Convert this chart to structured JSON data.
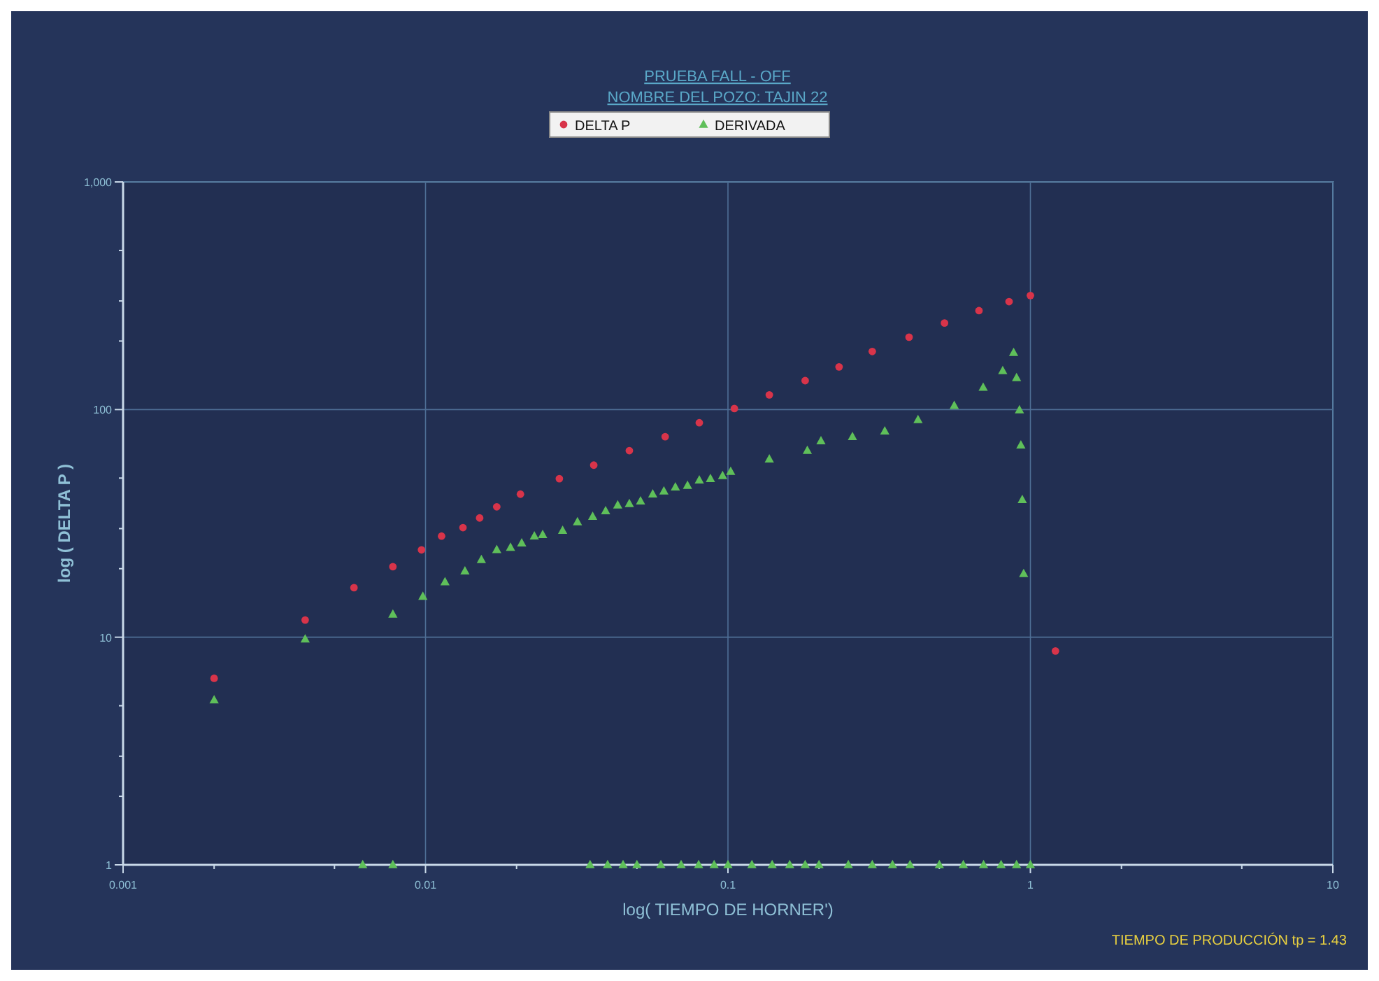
{
  "chart_data": {
    "type": "scatter",
    "title": "PRUEBA  FALL - OFF",
    "subtitle": "NOMBRE DEL POZO: TAJIN 22",
    "xlabel": "log( TIEMPO DE HORNER')",
    "ylabel": "log ( DELTA  P )",
    "log": "xy",
    "grid": true,
    "legend": "top",
    "xlim": [
      0.001,
      10
    ],
    "ylim": [
      1,
      1000
    ],
    "xticks": [
      0.001,
      {
        "value": 0.002,
        "label": null
      },
      {
        "value": 0.005,
        "label": null
      },
      0.01,
      {
        "value": 0.02,
        "label": null
      },
      {
        "value": 0.05,
        "label": null
      },
      0.1,
      {
        "value": 0.2,
        "label": null
      },
      {
        "value": 0.5,
        "label": null
      },
      1,
      {
        "value": 2,
        "label": null
      },
      {
        "value": 5,
        "label": null
      },
      10
    ],
    "yticks": [
      1,
      {
        "value": 2,
        "label": null
      },
      {
        "value": 3,
        "label": null
      },
      {
        "value": 5,
        "label": null
      },
      10,
      {
        "value": 20,
        "label": null
      },
      {
        "value": 30,
        "label": null
      },
      {
        "value": 50,
        "label": null
      },
      100,
      {
        "value": 200,
        "label": null
      },
      {
        "value": 300,
        "label": null
      },
      {
        "value": 500,
        "label": null
      },
      {
        "value": 1000,
        "label": "1,000"
      }
    ],
    "annotations": [
      "TIEMPO DE PRODUCCIÓN  tp = 1.43"
    ],
    "series": [
      {
        "name": "DELTA  P",
        "color": "#d8344a",
        "marker": "circle",
        "x": [
          0.002,
          0.004,
          0.0058,
          0.0078,
          0.0097,
          0.0113,
          0.0133,
          0.0151,
          0.0172,
          0.0206,
          0.0277,
          0.036,
          0.0472,
          0.062,
          0.0804,
          0.105,
          0.137,
          0.18,
          0.233,
          0.3,
          0.397,
          0.52,
          0.676,
          0.85,
          1.0,
          1.21
        ],
        "values": [
          6.6,
          11.9,
          16.5,
          20.4,
          24.2,
          27.8,
          30.3,
          33.4,
          37.4,
          42.5,
          49.7,
          57,
          66,
          76,
          87.5,
          101,
          116,
          134,
          154,
          180,
          208,
          240,
          272,
          298,
          317,
          8.7
        ]
      },
      {
        "name": "DERIVADA",
        "color": "#5fbf5a",
        "marker": "triangle",
        "x": [
          0.002,
          0.004,
          0.0078,
          0.0098,
          0.0116,
          0.0135,
          0.0153,
          0.0172,
          0.0191,
          0.0208,
          0.0229,
          0.0244,
          0.0284,
          0.0318,
          0.0357,
          0.0394,
          0.0432,
          0.0472,
          0.0514,
          0.0564,
          0.0614,
          0.067,
          0.0735,
          0.0804,
          0.0875,
          0.096,
          0.1021,
          0.137,
          0.183,
          0.203,
          0.258,
          0.33,
          0.425,
          0.56,
          0.698,
          0.81,
          0.88,
          0.9,
          0.92,
          0.93,
          0.94,
          0.95
        ],
        "values": [
          5.3,
          9.8,
          12.6,
          15.1,
          17.5,
          19.5,
          21.9,
          24.2,
          24.8,
          25.9,
          27.8,
          28.2,
          29.4,
          32.1,
          33.9,
          35.9,
          38,
          38.6,
          39.6,
          42.5,
          43.8,
          45.6,
          46.4,
          49,
          49.7,
          51.2,
          53.4,
          60.6,
          66,
          72.8,
          76,
          80.4,
          90.1,
          104,
          125,
          148,
          178,
          138,
          99.5,
          69.8,
          40.2,
          19
        ]
      },
      {
        "color": "#5fbf5a",
        "marker": "triangle",
        "x": [
          0.0062,
          0.0078,
          0.035,
          0.04,
          0.045,
          0.05,
          0.06,
          0.07,
          0.08,
          0.09,
          0.1,
          0.12,
          0.14,
          0.16,
          0.18,
          0.2,
          0.25,
          0.3,
          0.35,
          0.4,
          0.5,
          0.6,
          0.7,
          0.8,
          0.9,
          1.0
        ],
        "values": [
          1,
          1,
          1,
          1,
          1,
          1,
          1,
          1,
          1,
          1,
          1,
          1,
          1,
          1,
          1,
          1,
          1,
          1,
          1,
          1,
          1,
          1,
          1,
          1,
          1,
          1
        ]
      }
    ]
  }
}
